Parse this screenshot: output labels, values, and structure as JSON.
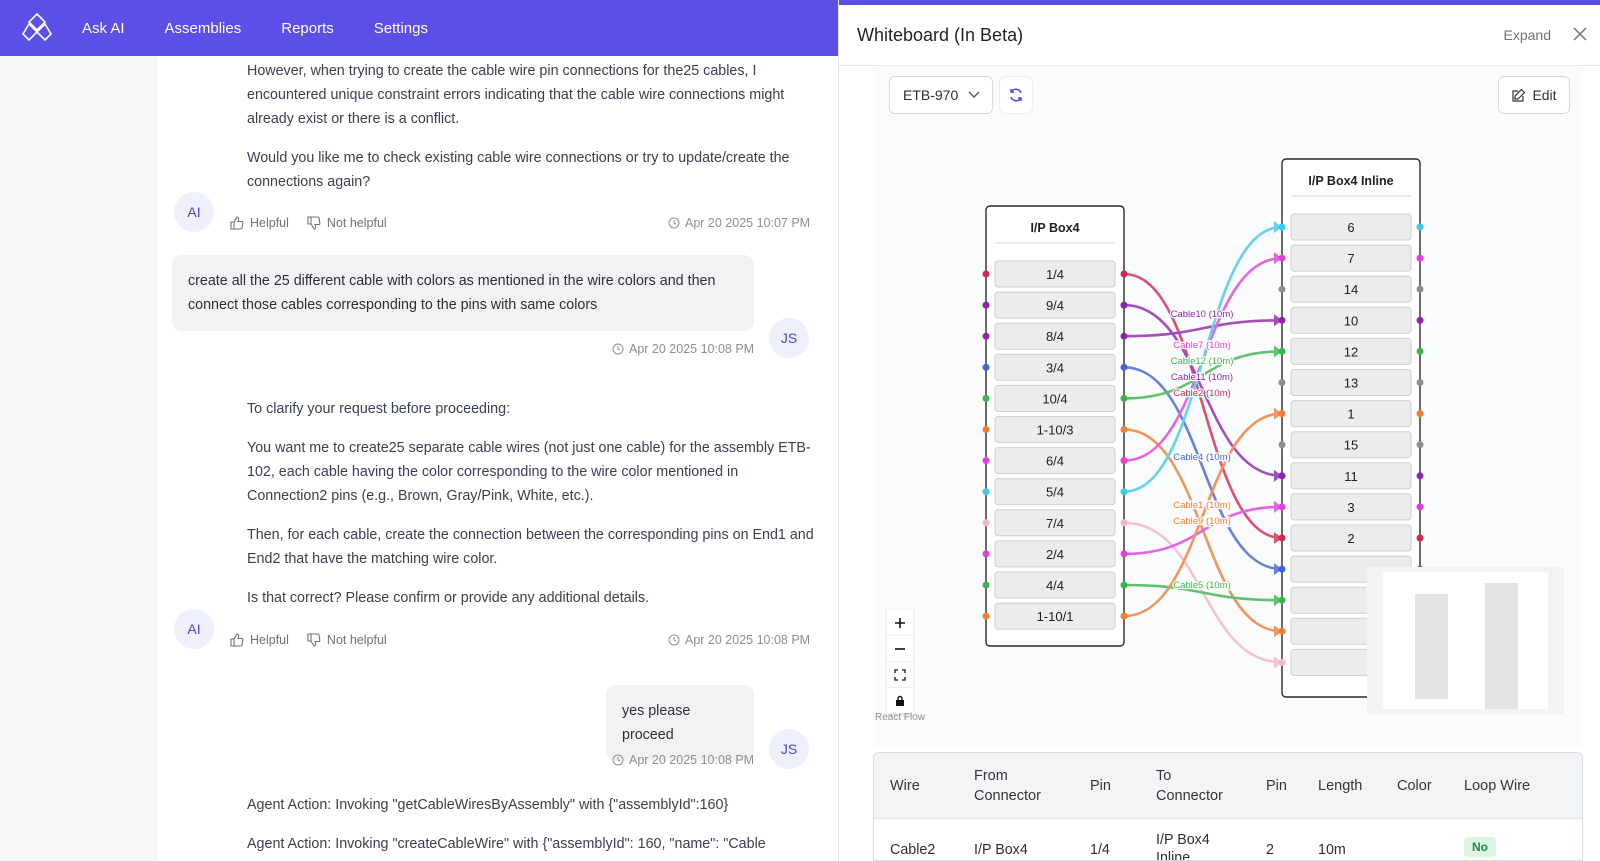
{
  "nav": {
    "items": [
      "Ask AI",
      "Assemblies",
      "Reports",
      "Settings"
    ]
  },
  "chat": {
    "msg1": {
      "paragraphs": [
        "However, when trying to create the cable wire pin connections for the25 cables, I encountered unique constraint errors indicating that the cable wire connections might already exist or there is a conflict.",
        "Would you like me to check existing cable wire connections or try to update/create the connections again?"
      ],
      "avatar": "AI",
      "helpful": "Helpful",
      "not_helpful": "Not helpful",
      "timestamp": "Apr 20 2025 10:07 PM"
    },
    "msg2": {
      "text": "create all the 25 different cable with colors as mentioned in the wire colors and then connect those cables corresponding to the pins with same colors",
      "avatar": "JS",
      "timestamp": "Apr 20 2025 10:08 PM"
    },
    "msg3": {
      "paragraphs": [
        "To clarify your request before proceeding:",
        "You want me to create25 separate cable wires (not just one cable) for the assembly ETB-102, each cable having the color corresponding to the wire color mentioned in Connection2 pins (e.g., Brown, Gray/Pink, White, etc.).",
        "Then, for each cable, create the connection between the corresponding pins on End1 and End2 that have the matching wire color.",
        "Is that correct? Please confirm or provide any additional details."
      ],
      "avatar": "AI",
      "helpful": "Helpful",
      "not_helpful": "Not helpful",
      "timestamp": "Apr 20 2025 10:08 PM"
    },
    "msg4": {
      "text": "yes please proceed",
      "avatar": "JS",
      "timestamp": "Apr 20 2025 10:08 PM"
    },
    "msg5": {
      "paragraphs": [
        "Agent Action: Invoking \"getCableWiresByAssembly\" with {\"assemblyId\":160}",
        "Agent Action: Invoking \"createCableWire\" with {\"assemblyId\": 160, \"name\": \"Cable"
      ]
    }
  },
  "panel": {
    "title": "Whiteboard (In Beta)",
    "expand": "Expand",
    "select_value": "ETB-970",
    "edit": "Edit",
    "react_flow": "React Flow",
    "node_left": {
      "title": "I/P Box4",
      "pins": [
        "1/4",
        "9/4",
        "8/4",
        "3/4",
        "10/4",
        "1-10/3",
        "6/4",
        "5/4",
        "7/4",
        "2/4",
        "4/4",
        "1-10/1"
      ],
      "colors": [
        "#d6264f",
        "#8e24aa",
        "#8e24aa",
        "#4262d6",
        "#3bb54a",
        "#ef7d32",
        "#e040d8",
        "#3fc9e8",
        "#f4b6cc",
        "#e040d8",
        "#3bb54a",
        "#ef7d32"
      ]
    },
    "node_right": {
      "title": "I/P Box4 Inline",
      "pins": [
        "6",
        "7",
        "14",
        "10",
        "12",
        "13",
        "1",
        "15",
        "11",
        "3",
        "2",
        "",
        "",
        "",
        ""
      ],
      "colors": [
        "#3fc9e8",
        "#e040d8",
        "#8d8d8d",
        "#8e24aa",
        "#3bb54a",
        "#8d8d8d",
        "#ef7d32",
        "#8d8d8d",
        "#8e24aa",
        "#e040d8",
        "#d6264f",
        "#4262d6",
        "#3bb54a",
        "#ef7d32",
        "#f4b6cc"
      ]
    },
    "edge_labels": [
      {
        "text": "Cable10 (10m)",
        "color": "#8e24aa"
      },
      {
        "text": "Cable7 (10m)",
        "color": "#e040d8"
      },
      {
        "text": "Cable12 (10m)",
        "color": "#3bb54a"
      },
      {
        "text": "Cable11 (10m)",
        "color": "#8e24aa"
      },
      {
        "text": "Cable2 (10m)",
        "color": "#d6264f"
      },
      {
        "text": "Cable4 (10m)",
        "color": "#4262d6"
      },
      {
        "text": "Cable1 (10m)",
        "color": "#ef7d32"
      },
      {
        "text": "Cable9 (10m)",
        "color": "#ef7d32"
      },
      {
        "text": "Cable5 (10m)",
        "color": "#3bb54a"
      }
    ],
    "table": {
      "headers": [
        "Wire",
        "From Connector",
        "Pin",
        "To Connector",
        "Pin",
        "Length",
        "Color",
        "Loop Wire"
      ],
      "rows": [
        [
          "Cable2",
          "I/P Box4",
          "1/4",
          "I/P Box4 Inline",
          "2",
          "10m",
          "",
          "No"
        ]
      ]
    }
  }
}
